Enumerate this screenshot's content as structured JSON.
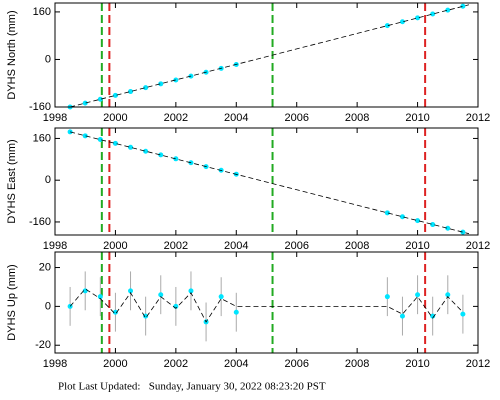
{
  "chart_data": [
    {
      "type": "scatter",
      "ylabel": "DYHS North (mm)",
      "xlim": [
        1998,
        2012
      ],
      "xticks": [
        1998,
        2000,
        2002,
        2004,
        2006,
        2008,
        2010,
        2012
      ],
      "ylim": [
        -160,
        190
      ],
      "yticks": [
        -160,
        0,
        160
      ],
      "vlines": [
        {
          "x": 1999.55,
          "color": "#22aa22"
        },
        {
          "x": 1999.8,
          "color": "#dd2222"
        },
        {
          "x": 2005.2,
          "color": "#22aa22"
        },
        {
          "x": 2010.25,
          "color": "#dd2222"
        }
      ],
      "series": [
        {
          "mode": "markers",
          "color": "#00e5ff",
          "x": [
            1998.5,
            1999,
            1999.5,
            2000,
            2000.5,
            2001,
            2001.5,
            2002,
            2002.5,
            2003,
            2003.5,
            2004,
            2009,
            2009.5,
            2010,
            2010.5,
            2011,
            2011.5
          ],
          "values": [
            -160,
            -147,
            -134,
            -121,
            -108,
            -95,
            -82,
            -69,
            -56,
            -43,
            -30,
            -17,
            114,
            127,
            140,
            153,
            166,
            179
          ]
        },
        {
          "mode": "dashed",
          "color": "#000000",
          "x": [
            1998.5,
            2011.7
          ],
          "values": [
            -160,
            184
          ]
        }
      ]
    },
    {
      "type": "scatter",
      "ylabel": "DYHS East (mm)",
      "xlim": [
        1998,
        2012
      ],
      "xticks": [
        1998,
        2000,
        2002,
        2004,
        2006,
        2008,
        2010,
        2012
      ],
      "ylim": [
        -210,
        200
      ],
      "yticks": [
        -160,
        0,
        160
      ],
      "vlines": [
        {
          "x": 1999.55,
          "color": "#22aa22"
        },
        {
          "x": 1999.8,
          "color": "#dd2222"
        },
        {
          "x": 2005.2,
          "color": "#22aa22"
        },
        {
          "x": 2010.25,
          "color": "#dd2222"
        }
      ],
      "series": [
        {
          "mode": "markers",
          "color": "#00e5ff",
          "x": [
            1998.5,
            1999,
            1999.5,
            2000,
            2000.5,
            2001,
            2001.5,
            2002,
            2002.5,
            2003,
            2003.5,
            2004,
            2009,
            2009.5,
            2010,
            2010.5,
            2011,
            2011.5
          ],
          "values": [
            185,
            170,
            156,
            141,
            126,
            111,
            97,
            82,
            67,
            52,
            38,
            23,
            -125,
            -140,
            -155,
            -170,
            -184,
            -199
          ]
        },
        {
          "mode": "dashed",
          "color": "#000000",
          "x": [
            1998.5,
            2011.7
          ],
          "values": [
            185,
            -205
          ]
        }
      ]
    },
    {
      "type": "scatter",
      "ylabel": "DYHS Up (mm)",
      "xlim": [
        1998,
        2012
      ],
      "xticks": [
        1998,
        2000,
        2002,
        2004,
        2006,
        2008,
        2010,
        2012
      ],
      "ylim": [
        -24,
        28
      ],
      "yticks": [
        -20,
        0,
        20
      ],
      "vlines": [
        {
          "x": 1999.55,
          "color": "#22aa22"
        },
        {
          "x": 1999.8,
          "color": "#dd2222"
        },
        {
          "x": 2005.2,
          "color": "#22aa22"
        },
        {
          "x": 2010.25,
          "color": "#dd2222"
        }
      ],
      "series": [
        {
          "mode": "markers",
          "color": "#00e5ff",
          "error_color": "#aaaaaa",
          "x": [
            1998.5,
            1999,
            1999.5,
            2000,
            2000.5,
            2001,
            2001.5,
            2002,
            2002.5,
            2003,
            2003.5,
            2004,
            2009,
            2009.5,
            2010,
            2010.5,
            2011,
            2011.5
          ],
          "values": [
            0,
            8,
            5,
            -3,
            8,
            -5,
            6,
            0,
            8,
            -8,
            5,
            -3,
            5,
            -5,
            6,
            -5,
            6,
            -4
          ],
          "errors": [
            10,
            10,
            10,
            10,
            10,
            10,
            10,
            10,
            10,
            10,
            10,
            10,
            10,
            10,
            10,
            10,
            10,
            10
          ]
        },
        {
          "mode": "dashed",
          "color": "#000000",
          "x": [
            1998.5,
            1999,
            1999.5,
            2000,
            2000.5,
            2001,
            2001.5,
            2002,
            2002.5,
            2003,
            2003.5,
            2004,
            2009,
            2009.5,
            2010,
            2010.5,
            2011,
            2011.5
          ],
          "values": [
            0,
            9,
            4,
            -4,
            7,
            -6,
            5,
            -1,
            7,
            -8,
            4,
            0,
            0,
            -4,
            5,
            -6,
            5,
            -3
          ]
        }
      ]
    }
  ],
  "footer": "Plot Last Updated:   Sunday, January 30, 2022 08:23:20 PST"
}
